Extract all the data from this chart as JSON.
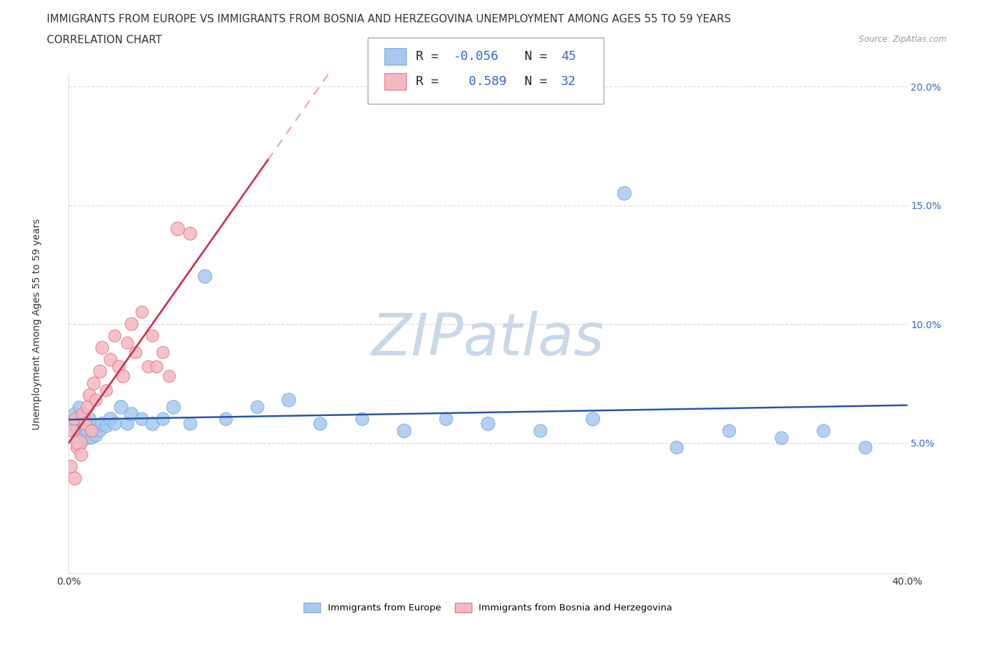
{
  "title_line1": "IMMIGRANTS FROM EUROPE VS IMMIGRANTS FROM BOSNIA AND HERZEGOVINA UNEMPLOYMENT AMONG AGES 55 TO 59 YEARS",
  "title_line2": "CORRELATION CHART",
  "source_text": "Source: ZipAtlas.com",
  "ylabel": "Unemployment Among Ages 55 to 59 years",
  "xlim": [
    0.0,
    0.4
  ],
  "ylim": [
    -0.005,
    0.205
  ],
  "background_color": "#ffffff",
  "series1_name": "Immigrants from Europe",
  "series1_color": "#a8c8f0",
  "series1_edge_color": "#7aaad8",
  "series1_R": -0.056,
  "series1_N": 45,
  "series2_name": "Immigrants from Bosnia and Herzegovina",
  "series2_color": "#f5b8c0",
  "series2_edge_color": "#e07888",
  "series2_R": 0.589,
  "series2_N": 32,
  "trend1_color": "#2255aa",
  "trend2_solid_color": "#cc3355",
  "trend2_dash_color": "#e8a0b0",
  "grid_color": "#dddddd",
  "title_fontsize": 11,
  "axis_label_fontsize": 10,
  "tick_fontsize": 10,
  "legend_fontsize": 13,
  "watermark_color": "#c8d8eb",
  "ytick_color": "#3366cc",
  "xtick_color": "#333333",
  "label_color": "#333333",
  "series1_x": [
    0.002,
    0.003,
    0.004,
    0.005,
    0.005,
    0.006,
    0.006,
    0.007,
    0.008,
    0.009,
    0.01,
    0.01,
    0.011,
    0.012,
    0.013,
    0.015,
    0.016,
    0.018,
    0.02,
    0.022,
    0.025,
    0.028,
    0.03,
    0.035,
    0.04,
    0.045,
    0.05,
    0.058,
    0.065,
    0.075,
    0.09,
    0.105,
    0.12,
    0.14,
    0.16,
    0.18,
    0.2,
    0.225,
    0.25,
    0.265,
    0.29,
    0.315,
    0.34,
    0.36,
    0.38
  ],
  "series1_y": [
    0.058,
    0.062,
    0.055,
    0.065,
    0.05,
    0.06,
    0.055,
    0.053,
    0.058,
    0.052,
    0.055,
    0.06,
    0.052,
    0.057,
    0.053,
    0.055,
    0.058,
    0.057,
    0.06,
    0.058,
    0.065,
    0.058,
    0.062,
    0.06,
    0.058,
    0.06,
    0.065,
    0.058,
    0.12,
    0.06,
    0.065,
    0.068,
    0.058,
    0.06,
    0.055,
    0.06,
    0.058,
    0.055,
    0.06,
    0.155,
    0.048,
    0.055,
    0.052,
    0.055,
    0.048
  ],
  "series1_sizes": [
    300,
    200,
    180,
    160,
    200,
    180,
    160,
    140,
    200,
    180,
    350,
    180,
    160,
    200,
    180,
    160,
    200,
    180,
    200,
    180,
    200,
    180,
    200,
    180,
    200,
    180,
    200,
    180,
    200,
    180,
    180,
    200,
    180,
    180,
    200,
    180,
    200,
    180,
    200,
    200,
    180,
    180,
    180,
    180,
    180
  ],
  "series2_x": [
    0.001,
    0.002,
    0.003,
    0.003,
    0.004,
    0.005,
    0.006,
    0.007,
    0.008,
    0.009,
    0.01,
    0.011,
    0.012,
    0.013,
    0.015,
    0.016,
    0.018,
    0.02,
    0.022,
    0.024,
    0.026,
    0.028,
    0.03,
    0.032,
    0.035,
    0.038,
    0.04,
    0.042,
    0.045,
    0.048,
    0.052,
    0.058
  ],
  "series2_y": [
    0.04,
    0.055,
    0.06,
    0.035,
    0.048,
    0.05,
    0.045,
    0.062,
    0.058,
    0.065,
    0.07,
    0.055,
    0.075,
    0.068,
    0.08,
    0.09,
    0.072,
    0.085,
    0.095,
    0.082,
    0.078,
    0.092,
    0.1,
    0.088,
    0.105,
    0.082,
    0.095,
    0.082,
    0.088,
    0.078,
    0.14,
    0.138
  ],
  "series2_sizes": [
    180,
    180,
    160,
    180,
    160,
    280,
    180,
    200,
    180,
    180,
    180,
    160,
    180,
    160,
    180,
    180,
    160,
    180,
    160,
    180,
    180,
    160,
    180,
    160,
    160,
    160,
    160,
    160,
    160,
    160,
    200,
    180
  ]
}
